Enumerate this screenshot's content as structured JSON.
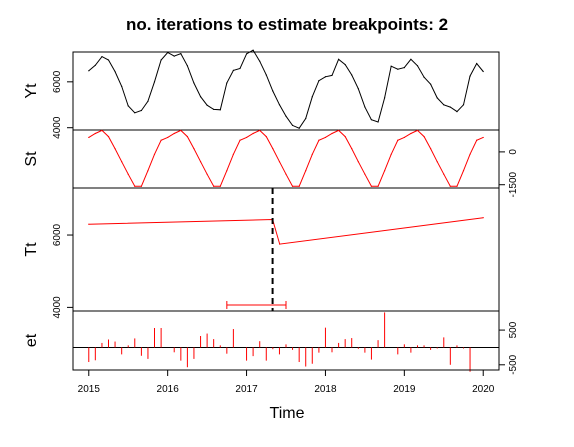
{
  "chart_data": {
    "type": "line",
    "title": "no. iterations to estimate breakpoints: 2",
    "xlabel": "Time",
    "x_ticks": [
      2015,
      2016,
      2017,
      2018,
      2019,
      2020
    ],
    "xlim": [
      2014.8,
      2020.2
    ],
    "panels": [
      {
        "name": "Yt",
        "ylim": [
          3900,
          7300
        ],
        "y_ticks": [
          4000,
          6000
        ],
        "axis_side": "left",
        "color": "#000000",
        "x": [
          2015.0,
          2015.083,
          2015.167,
          2015.25,
          2015.333,
          2015.417,
          2015.5,
          2015.583,
          2015.667,
          2015.75,
          2015.833,
          2015.917,
          2016.0,
          2016.083,
          2016.167,
          2016.25,
          2016.333,
          2016.417,
          2016.5,
          2016.583,
          2016.667,
          2016.75,
          2016.833,
          2016.917,
          2017.0,
          2017.083,
          2017.167,
          2017.25,
          2017.333,
          2017.417,
          2017.5,
          2017.583,
          2017.667,
          2017.75,
          2017.833,
          2017.917,
          2018.0,
          2018.083,
          2018.167,
          2018.25,
          2018.333,
          2018.417,
          2018.5,
          2018.583,
          2018.667,
          2018.75,
          2018.833,
          2018.917,
          2019.0,
          2019.083,
          2019.167,
          2019.25,
          2019.333,
          2019.417,
          2019.5,
          2019.583,
          2019.667,
          2019.75,
          2019.833,
          2019.917,
          2020.0
        ],
        "y": [
          6480,
          6720,
          7100,
          6950,
          6450,
          5800,
          4950,
          4650,
          4750,
          5150,
          6000,
          6950,
          7280,
          7120,
          7230,
          6700,
          5950,
          5350,
          4980,
          4800,
          4780,
          5950,
          6500,
          6580,
          7220,
          7380,
          6900,
          6300,
          5600,
          5000,
          4500,
          4100,
          3980,
          4400,
          5350,
          6050,
          6220,
          6280,
          6980,
          6750,
          6300,
          5700,
          4900,
          4350,
          4250,
          5300,
          6680,
          6550,
          6620,
          6980,
          6700,
          6200,
          5900,
          5300,
          5000,
          4900,
          4700,
          5000,
          6250,
          6800,
          6450
        ]
      },
      {
        "name": "St",
        "ylim": [
          -1650,
          1000
        ],
        "y_ticks": [
          -1500,
          0
        ],
        "axis_side": "right",
        "color": "#ff0000",
        "x": [
          2015.0,
          2015.083,
          2015.167,
          2015.25,
          2015.333,
          2015.417,
          2015.5,
          2015.583,
          2015.667,
          2015.75,
          2015.833,
          2015.917,
          2016.0,
          2016.083,
          2016.167,
          2016.25,
          2016.333,
          2016.417,
          2016.5,
          2016.583,
          2016.667,
          2016.75,
          2016.833,
          2016.917,
          2017.0,
          2017.083,
          2017.167,
          2017.25,
          2017.333,
          2017.417,
          2017.5,
          2017.583,
          2017.667,
          2017.75,
          2017.833,
          2017.917,
          2018.0,
          2018.083,
          2018.167,
          2018.25,
          2018.333,
          2018.417,
          2018.5,
          2018.583,
          2018.667,
          2018.75,
          2018.833,
          2018.917,
          2019.0,
          2019.083,
          2019.167,
          2019.25,
          2019.333,
          2019.417,
          2019.5,
          2019.583,
          2019.667,
          2019.75,
          2019.833,
          2019.917,
          2020.0
        ],
        "y": [
          660,
          840,
          980,
          700,
          150,
          -450,
          -1020,
          -1570,
          -1570,
          -860,
          -110,
          530,
          660,
          840,
          980,
          700,
          150,
          -450,
          -1020,
          -1570,
          -1570,
          -860,
          -110,
          530,
          660,
          840,
          980,
          700,
          150,
          -450,
          -1020,
          -1570,
          -1570,
          -860,
          -110,
          530,
          660,
          840,
          980,
          700,
          150,
          -450,
          -1020,
          -1570,
          -1570,
          -860,
          -110,
          530,
          660,
          840,
          980,
          700,
          150,
          -450,
          -1020,
          -1570,
          -1570,
          -860,
          -110,
          530,
          660
        ]
      },
      {
        "name": "Tt",
        "ylim": [
          3900,
          7300
        ],
        "y_ticks": [
          4000,
          6000
        ],
        "axis_side": "left",
        "color": "#ff0000",
        "x": [
          2015.0,
          2017.33,
          2017.42,
          2020.0
        ],
        "y": [
          6300,
          6430,
          5750,
          6480
        ],
        "breakpoint": {
          "x": 2017.33,
          "ci_low": 2016.75,
          "ci_high": 2017.5
        }
      },
      {
        "name": "et",
        "ylim": [
          -650,
          1050
        ],
        "y_ticks": [
          -500,
          500
        ],
        "axis_side": "right",
        "color": "#ff0000",
        "type": "spikes",
        "x": [
          2015.0,
          2015.083,
          2015.167,
          2015.25,
          2015.333,
          2015.417,
          2015.5,
          2015.583,
          2015.667,
          2015.75,
          2015.833,
          2015.917,
          2016.0,
          2016.083,
          2016.167,
          2016.25,
          2016.333,
          2016.417,
          2016.5,
          2016.583,
          2016.667,
          2016.75,
          2016.833,
          2016.917,
          2017.0,
          2017.083,
          2017.167,
          2017.25,
          2017.333,
          2017.417,
          2017.5,
          2017.583,
          2017.667,
          2017.75,
          2017.833,
          2017.917,
          2018.0,
          2018.083,
          2018.167,
          2018.25,
          2018.333,
          2018.417,
          2018.5,
          2018.583,
          2018.667,
          2018.75,
          2018.833,
          2018.917,
          2019.0,
          2019.083,
          2019.167,
          2019.25,
          2019.333,
          2019.417,
          2019.5,
          2019.583,
          2019.667,
          2019.75,
          2019.833,
          2019.917,
          2020.0
        ],
        "y": [
          -420,
          -370,
          130,
          230,
          170,
          -200,
          60,
          260,
          -240,
          -330,
          560,
          560,
          0,
          -140,
          -380,
          -570,
          -330,
          330,
          400,
          240,
          60,
          -180,
          530,
          0,
          -380,
          -250,
          180,
          -380,
          -50,
          -200,
          90,
          -70,
          -420,
          -550,
          -470,
          -150,
          570,
          -140,
          130,
          240,
          270,
          -40,
          -150,
          -350,
          210,
          1010,
          0,
          -200,
          90,
          -150,
          60,
          60,
          -70,
          -30,
          290,
          -500,
          60,
          -30,
          -700,
          0,
          0
        ]
      }
    ]
  }
}
